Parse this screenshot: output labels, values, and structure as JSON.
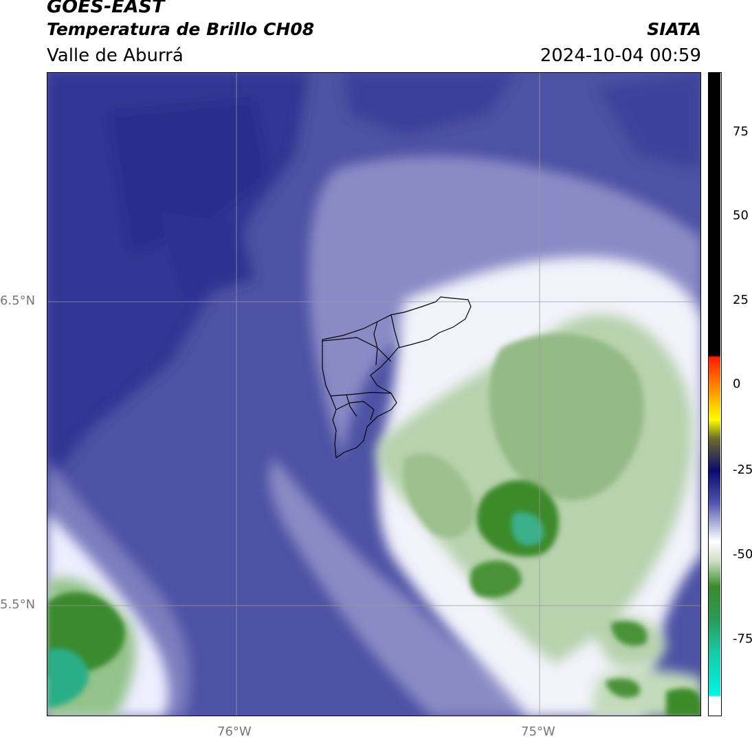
{
  "header": {
    "satellite": "GOES-EAST",
    "product": "Temperatura de Brillo CH08",
    "region": "Valle de Aburrá",
    "organization": "SIATA",
    "timestamp": "2024-10-04 00:59"
  },
  "map": {
    "lat_labels": [
      "6.5°N",
      "5.5°N"
    ],
    "lon_labels": [
      "76°W",
      "75°W"
    ]
  },
  "colorbar": {
    "ticks": [
      "75",
      "50",
      "25",
      "0",
      "-25",
      "-50",
      "-75"
    ],
    "colors": {
      "black": "#000000",
      "red": "#ff2a00",
      "orange": "#ff9000",
      "yellow": "#ffff00",
      "dark_navy": "#10106e",
      "indigo": "#4b4fa8",
      "white": "#ffffff",
      "green": "#3c8a2c",
      "cyan": "#00f0e0"
    }
  }
}
